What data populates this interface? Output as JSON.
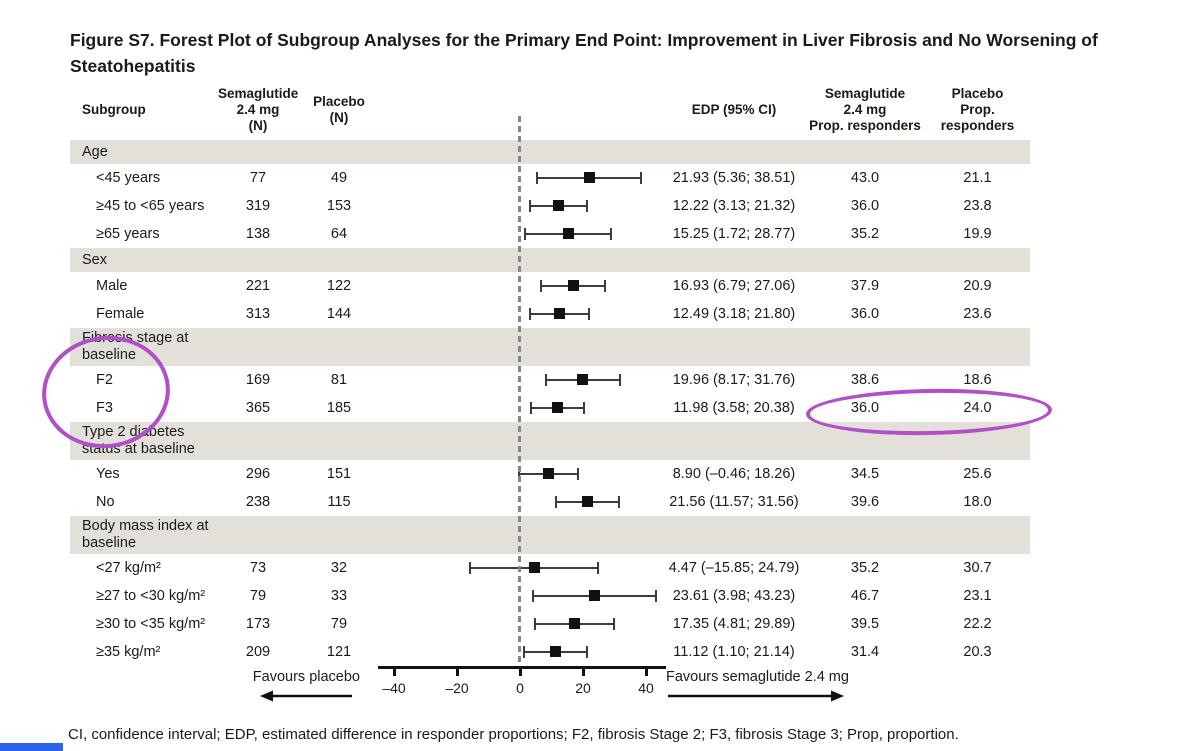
{
  "title": "Figure S7. Forest Plot of Subgroup Analyses for the Primary End Point: Improvement in Liver Fibrosis and No Worsening of\nSteatohepatitis",
  "header": {
    "subgroup": "Subgroup",
    "sema_n": "Semaglutide\n2.4 mg\n(N)",
    "placebo_n": "Placebo\n(N)",
    "edp": "EDP (95% CI)",
    "sema_prop": "Semaglutide\n2.4 mg\nProp. responders",
    "placebo_prop": "Placebo\nProp.\nresponders"
  },
  "chart_data": {
    "type": "forest",
    "xlim": [
      -45,
      45
    ],
    "x_tick_values": [
      -40,
      -20,
      0,
      20,
      40
    ],
    "x_ticks": [
      "–40",
      "–20",
      "0",
      "20",
      "40"
    ],
    "reference_x": 0,
    "favours_left": "Favours placebo",
    "favours_right": "Favours semaglutide 2.4 mg",
    "sections": [
      {
        "label": "Age",
        "rows": [
          {
            "subgroup": "<45 years",
            "sema_n": "77",
            "placebo_n": "49",
            "est": 21.93,
            "lo": 5.36,
            "hi": 38.51,
            "edp": "21.93 (5.36; 38.51)",
            "sema_prop": "43.0",
            "placebo_prop": "21.1"
          },
          {
            "subgroup": "≥45 to <65 years",
            "sema_n": "319",
            "placebo_n": "153",
            "est": 12.22,
            "lo": 3.13,
            "hi": 21.32,
            "edp": "12.22 (3.13; 21.32)",
            "sema_prop": "36.0",
            "placebo_prop": "23.8"
          },
          {
            "subgroup": "≥65 years",
            "sema_n": "138",
            "placebo_n": "64",
            "est": 15.25,
            "lo": 1.72,
            "hi": 28.77,
            "edp": "15.25 (1.72; 28.77)",
            "sema_prop": "35.2",
            "placebo_prop": "19.9"
          }
        ]
      },
      {
        "label": "Sex",
        "rows": [
          {
            "subgroup": "Male",
            "sema_n": "221",
            "placebo_n": "122",
            "est": 16.93,
            "lo": 6.79,
            "hi": 27.06,
            "edp": "16.93 (6.79; 27.06)",
            "sema_prop": "37.9",
            "placebo_prop": "20.9"
          },
          {
            "subgroup": "Female",
            "sema_n": "313",
            "placebo_n": "144",
            "est": 12.49,
            "lo": 3.18,
            "hi": 21.8,
            "edp": "12.49 (3.18; 21.80)",
            "sema_prop": "36.0",
            "placebo_prop": "23.6"
          }
        ]
      },
      {
        "label": "Fibrosis stage at\nbaseline",
        "rows": [
          {
            "subgroup": "F2",
            "sema_n": "169",
            "placebo_n": "81",
            "est": 19.96,
            "lo": 8.17,
            "hi": 31.76,
            "edp": "19.96 (8.17; 31.76)",
            "sema_prop": "38.6",
            "placebo_prop": "18.6"
          },
          {
            "subgroup": "F3",
            "sema_n": "365",
            "placebo_n": "185",
            "est": 11.98,
            "lo": 3.58,
            "hi": 20.38,
            "edp": "11.98 (3.58; 20.38)",
            "sema_prop": "36.0",
            "placebo_prop": "24.0"
          }
        ]
      },
      {
        "label": "Type 2 diabetes\nstatus at baseline",
        "rows": [
          {
            "subgroup": "Yes",
            "sema_n": "296",
            "placebo_n": "151",
            "est": 8.9,
            "lo": -0.46,
            "hi": 18.26,
            "edp": "8.90 (–0.46; 18.26)",
            "sema_prop": "34.5",
            "placebo_prop": "25.6"
          },
          {
            "subgroup": "No",
            "sema_n": "238",
            "placebo_n": "115",
            "est": 21.56,
            "lo": 11.57,
            "hi": 31.56,
            "edp": "21.56 (11.57; 31.56)",
            "sema_prop": "39.6",
            "placebo_prop": "18.0"
          }
        ]
      },
      {
        "label": "Body mass index at\nbaseline",
        "rows": [
          {
            "subgroup": "<27 kg/m²",
            "sema_n": "73",
            "placebo_n": "32",
            "est": 4.47,
            "lo": -15.85,
            "hi": 24.79,
            "edp": "4.47 (–15.85; 24.79)",
            "sema_prop": "35.2",
            "placebo_prop": "30.7"
          },
          {
            "subgroup": "≥27 to <30 kg/m²",
            "sema_n": "79",
            "placebo_n": "33",
            "est": 23.61,
            "lo": 3.98,
            "hi": 43.23,
            "edp": "23.61 (3.98; 43.23)",
            "sema_prop": "46.7",
            "placebo_prop": "23.1"
          },
          {
            "subgroup": "≥30 to <35 kg/m²",
            "sema_n": "173",
            "placebo_n": "79",
            "est": 17.35,
            "lo": 4.81,
            "hi": 29.89,
            "edp": "17.35 (4.81; 29.89)",
            "sema_prop": "39.5",
            "placebo_prop": "22.2"
          },
          {
            "subgroup": "≥35 kg/m²",
            "sema_n": "209",
            "placebo_n": "121",
            "est": 11.12,
            "lo": 1.1,
            "hi": 21.14,
            "edp": "11.12 (1.10; 21.14)",
            "sema_prop": "31.4",
            "placebo_prop": "20.3"
          }
        ]
      }
    ]
  },
  "footnote": "CI, confidence interval; EDP, estimated difference in responder proportions; F2, fibrosis Stage 2; F3, fibrosis Stage 3; Prop, proportion.",
  "annotations": {
    "circle_color": "#b04fc7"
  },
  "colors": {
    "band": "#e3e0da",
    "marker": "#111111",
    "reference_line": "#868686",
    "status_bar_blue": "#2a62ea"
  }
}
